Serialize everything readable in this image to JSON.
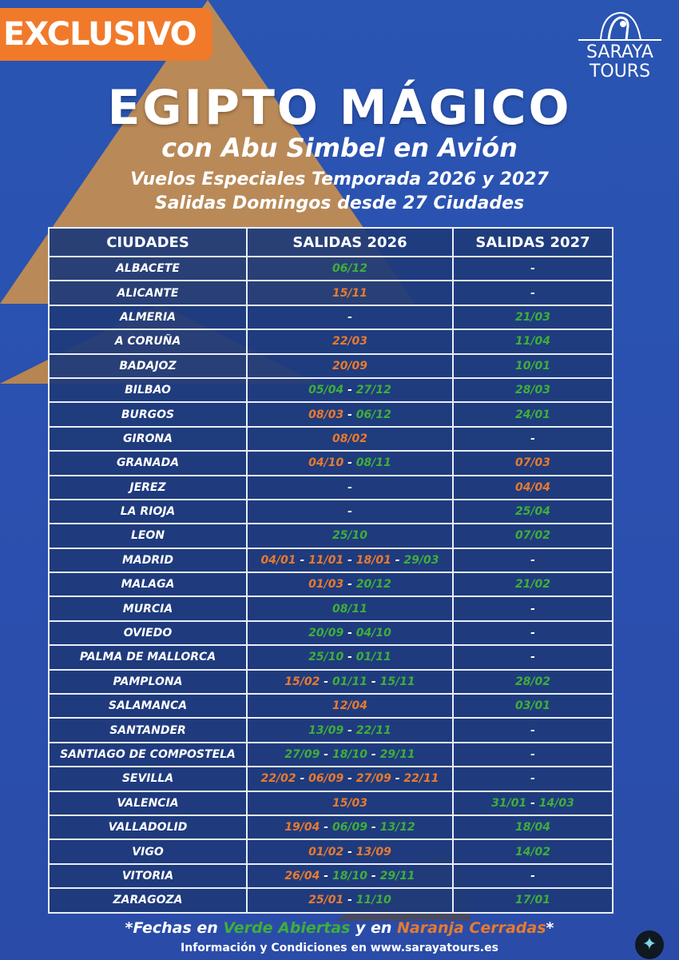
{
  "badge": "EXCLUSIVO",
  "logo": {
    "line1": "SARAYA",
    "line2": "TOURS"
  },
  "title": "EGIPTO MÁGICO",
  "subtitle": "con Abu Simbel en Avión",
  "tagline1": "Vuelos Especiales Temporada 2026 y 2027",
  "tagline2": "Salidas Domingos desde 27 Ciudades",
  "colors": {
    "open": "#3fae3a",
    "closed": "#e87a2e",
    "background": "#2a4fae",
    "table": "#1e3a7a",
    "badge": "#f07a2a"
  },
  "table": {
    "headers": [
      "CIUDADES",
      "SALIDAS 2026",
      "SALIDAS 2027"
    ],
    "rows": [
      {
        "city": "ALBACETE",
        "s2026": [
          [
            "06/12",
            "g"
          ]
        ],
        "s2027": []
      },
      {
        "city": "ALICANTE",
        "s2026": [
          [
            "15/11",
            "o"
          ]
        ],
        "s2027": []
      },
      {
        "city": "ALMERIA",
        "s2026": [],
        "s2027": [
          [
            "21/03",
            "g"
          ]
        ]
      },
      {
        "city": "A CORUÑA",
        "s2026": [
          [
            "22/03",
            "o"
          ]
        ],
        "s2027": [
          [
            "11/04",
            "g"
          ]
        ]
      },
      {
        "city": "BADAJOZ",
        "s2026": [
          [
            "20/09",
            "o"
          ]
        ],
        "s2027": [
          [
            "10/01",
            "g"
          ]
        ]
      },
      {
        "city": "BILBAO",
        "s2026": [
          [
            "05/04",
            "g"
          ],
          [
            "27/12",
            "g"
          ]
        ],
        "s2027": [
          [
            "28/03",
            "g"
          ]
        ]
      },
      {
        "city": "BURGOS",
        "s2026": [
          [
            "08/03",
            "o"
          ],
          [
            "06/12",
            "g"
          ]
        ],
        "s2027": [
          [
            "24/01",
            "g"
          ]
        ]
      },
      {
        "city": "GIRONA",
        "s2026": [
          [
            "08/02",
            "o"
          ]
        ],
        "s2027": []
      },
      {
        "city": "GRANADA",
        "s2026": [
          [
            "04/10",
            "o"
          ],
          [
            "08/11",
            "g"
          ]
        ],
        "s2027": [
          [
            "07/03",
            "o"
          ]
        ]
      },
      {
        "city": "JEREZ",
        "s2026": [],
        "s2027": [
          [
            "04/04",
            "o"
          ]
        ]
      },
      {
        "city": "LA RIOJA",
        "s2026": [],
        "s2027": [
          [
            "25/04",
            "g"
          ]
        ]
      },
      {
        "city": "LEON",
        "s2026": [
          [
            "25/10",
            "g"
          ]
        ],
        "s2027": [
          [
            "07/02",
            "g"
          ]
        ]
      },
      {
        "city": "MADRID",
        "s2026": [
          [
            "04/01",
            "o"
          ],
          [
            "11/01",
            "o"
          ],
          [
            "18/01",
            "o"
          ],
          [
            "29/03",
            "g"
          ]
        ],
        "s2027": []
      },
      {
        "city": "MALAGA",
        "s2026": [
          [
            "01/03",
            "o"
          ],
          [
            "20/12",
            "g"
          ]
        ],
        "s2027": [
          [
            "21/02",
            "g"
          ]
        ]
      },
      {
        "city": "MURCIA",
        "s2026": [
          [
            "08/11",
            "g"
          ]
        ],
        "s2027": []
      },
      {
        "city": "OVIEDO",
        "s2026": [
          [
            "20/09",
            "g"
          ],
          [
            "04/10",
            "g"
          ]
        ],
        "s2027": []
      },
      {
        "city": "PALMA DE  MALLORCA",
        "s2026": [
          [
            "25/10",
            "g"
          ],
          [
            "01/11",
            "g"
          ]
        ],
        "s2027": []
      },
      {
        "city": "PAMPLONA",
        "s2026": [
          [
            "15/02",
            "o"
          ],
          [
            "01/11",
            "g"
          ],
          [
            "15/11",
            "g"
          ]
        ],
        "s2027": [
          [
            "28/02",
            "g"
          ]
        ]
      },
      {
        "city": "SALAMANCA",
        "s2026": [
          [
            "12/04",
            "o"
          ]
        ],
        "s2027": [
          [
            "03/01",
            "g"
          ]
        ]
      },
      {
        "city": "SANTANDER",
        "s2026": [
          [
            "13/09",
            "g"
          ],
          [
            "22/11",
            "g"
          ]
        ],
        "s2027": []
      },
      {
        "city": "SANTIAGO DE COMPOSTELA",
        "s2026": [
          [
            "27/09",
            "g"
          ],
          [
            "18/10",
            "g"
          ],
          [
            "29/11",
            "g"
          ]
        ],
        "s2027": []
      },
      {
        "city": "SEVILLA",
        "s2026": [
          [
            "22/02",
            "o"
          ],
          [
            "06/09",
            "o"
          ],
          [
            "27/09",
            "o"
          ],
          [
            "22/11",
            "o"
          ]
        ],
        "s2027": []
      },
      {
        "city": "VALENCIA",
        "s2026": [
          [
            "15/03",
            "o"
          ]
        ],
        "s2027": [
          [
            "31/01",
            "g"
          ],
          [
            "14/03",
            "g"
          ]
        ]
      },
      {
        "city": "VALLADOLID",
        "s2026": [
          [
            "19/04",
            "o"
          ],
          [
            "06/09",
            "g"
          ],
          [
            "13/12",
            "g"
          ]
        ],
        "s2027": [
          [
            "18/04",
            "g"
          ]
        ]
      },
      {
        "city": "VIGO",
        "s2026": [
          [
            "01/02",
            "o"
          ],
          [
            "13/09",
            "o"
          ]
        ],
        "s2027": [
          [
            "14/02",
            "g"
          ]
        ]
      },
      {
        "city": "VITORIA",
        "s2026": [
          [
            "26/04",
            "o"
          ],
          [
            "18/10",
            "g"
          ],
          [
            "29/11",
            "g"
          ]
        ],
        "s2027": []
      },
      {
        "city": "ZARAGOZA",
        "s2026": [
          [
            "25/01",
            "o"
          ],
          [
            "11/10",
            "g"
          ]
        ],
        "s2027": [
          [
            "17/01",
            "g"
          ]
        ]
      }
    ]
  },
  "footer": {
    "p1": "*Fechas en ",
    "green": "Verde Abiertas",
    "p2": " y en ",
    "orange": "Naranja Cerradas",
    "p3": "*",
    "info": "Información y Condiciones en www.sarayatours.es"
  }
}
